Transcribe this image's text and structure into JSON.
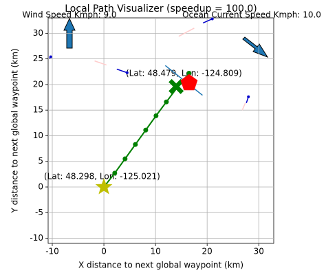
{
  "chart_data": {
    "type": "line",
    "title": "Local Path Visualizer (speedup = 100.0)",
    "xlabel": "X distance to next global waypoint (km)",
    "ylabel": "Y distance to next global waypoint (km)",
    "xlim": [
      -10.8,
      32.9
    ],
    "ylim": [
      -11,
      33
    ],
    "xticks": [
      -10,
      0,
      10,
      20,
      30
    ],
    "yticks": [
      -10,
      -5,
      0,
      5,
      10,
      15,
      20,
      25,
      30
    ],
    "grid": true,
    "annotations": [
      "Wind Speed Kmph: 9.0",
      "Ocean Current Speed Kmph: 10.0",
      "(Lat: 48.479, Lon: -124.809)",
      "(Lat: 48.298, Lon: -125.021)"
    ],
    "series": [
      {
        "color": "#008000",
        "marker": "dot",
        "x": [
          0,
          2.1,
          4.1,
          6.1,
          8.1,
          10.1,
          12.1,
          14.2,
          16.5
        ],
        "y": [
          0,
          2.7,
          5.5,
          8.3,
          11.1,
          13.9,
          16.6,
          19.4,
          22.2
        ]
      },
      {
        "color": "#1f77b4",
        "marker": "none",
        "x": [
          11.9,
          19.1
        ],
        "y": [
          23.7,
          17.9
        ]
      },
      {
        "color": "#0000cc",
        "marker": "end",
        "x": [
          -10.3,
          -10.6
        ],
        "y": [
          25.4,
          25.1
        ]
      },
      {
        "color": "#0000cc",
        "marker": "end",
        "x": [
          4.5,
          2.5
        ],
        "y": [
          22.3,
          23.0
        ]
      },
      {
        "color": "#0000cc",
        "marker": "end",
        "x": [
          21.0,
          19.2
        ],
        "y": [
          32.8,
          32.0
        ]
      },
      {
        "color": "#0000cc",
        "marker": "end",
        "x": [
          28.0,
          27.6
        ],
        "y": [
          17.6,
          16.4
        ]
      },
      {
        "color": "#ffcccc",
        "marker": "none",
        "x": [
          -1.8,
          0.5
        ],
        "y": [
          24.6,
          23.8
        ]
      },
      {
        "color": "#ffcccc",
        "marker": "none",
        "x": [
          14.5,
          17.5
        ],
        "y": [
          29.4,
          31.0
        ]
      },
      {
        "color": "#ffcccc",
        "marker": "none",
        "x": [
          26.8,
          27.4
        ],
        "y": [
          15.0,
          16.4
        ]
      },
      {
        "color": "#bfbf00",
        "marker": "star",
        "x": [
          0
        ],
        "y": [
          0
        ]
      },
      {
        "color": "#008000",
        "marker": "cross",
        "x": [
          14.0
        ],
        "y": [
          19.6
        ]
      },
      {
        "color": "#ff0000",
        "marker": "pentagon",
        "x": [
          16.5
        ],
        "y": [
          20.3
        ]
      }
    ]
  }
}
